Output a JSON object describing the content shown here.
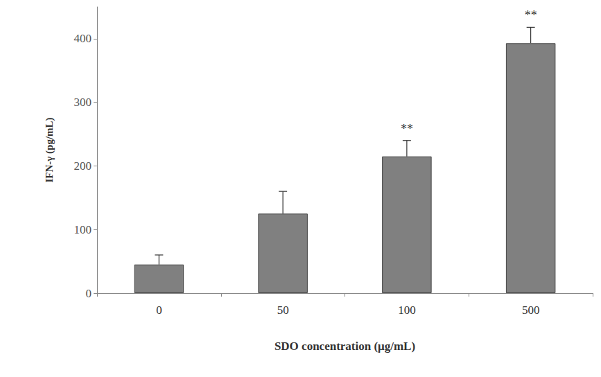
{
  "chart_data": {
    "type": "bar",
    "x_label": "SDO concentration (μg/mL)",
    "y_label": "IFN-γ (pg/mL)",
    "categories": [
      "0",
      "50",
      "100",
      "500"
    ],
    "values": [
      45,
      125,
      215,
      393
    ],
    "errors": [
      15,
      35,
      25,
      25
    ],
    "annotations": [
      null,
      null,
      "**",
      "**"
    ],
    "color": "#808080",
    "ylim": [
      0,
      450
    ],
    "yticks": [
      0,
      100,
      200,
      300,
      400
    ],
    "grid": false
  }
}
